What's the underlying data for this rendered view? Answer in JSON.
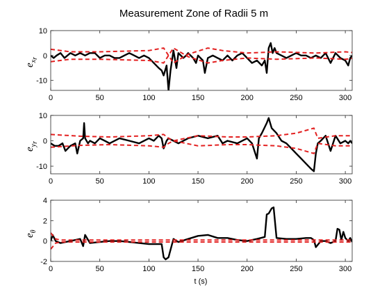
{
  "chart_data": [
    {
      "type": "line",
      "title": "Measurement Zone of Radii 5 m",
      "ylabel": "e",
      "ylabel_sub": "x",
      "ylabel_subsub": "r",
      "xlim": [
        0,
        307
      ],
      "ylim": [
        -14,
        10
      ],
      "xticks": [
        0,
        50,
        100,
        150,
        200,
        250,
        300
      ],
      "yticks": [
        10,
        0,
        -10
      ],
      "series": [
        {
          "color": "#000000",
          "style": "solid",
          "x": [
            0,
            3,
            6,
            10,
            14,
            20,
            25,
            30,
            35,
            40,
            45,
            50,
            55,
            60,
            65,
            70,
            75,
            80,
            85,
            90,
            95,
            100,
            105,
            110,
            113,
            115,
            118,
            120,
            122,
            125,
            128,
            130,
            135,
            138,
            140,
            145,
            148,
            150,
            155,
            157,
            160,
            165,
            170,
            175,
            180,
            185,
            190,
            195,
            200,
            205,
            210,
            215,
            218,
            220,
            222,
            224,
            226,
            228,
            230,
            235,
            240,
            245,
            250,
            255,
            260,
            265,
            270,
            275,
            280,
            285,
            290,
            295,
            300,
            303,
            305,
            307
          ],
          "y": [
            0,
            -1,
            0,
            1,
            -1,
            1,
            0,
            1,
            0,
            1,
            1,
            -1,
            0,
            0,
            -1,
            -1,
            0,
            1,
            0,
            -1,
            0,
            -1,
            -3,
            -5,
            -6,
            -8,
            -4,
            -14,
            -6,
            2,
            -5,
            1,
            -1,
            0,
            1,
            -1,
            -3,
            0,
            -2,
            -7,
            -1,
            0,
            -1,
            -2,
            0,
            -2,
            0,
            1,
            -1,
            -3,
            -2,
            -4,
            -2,
            -7,
            3,
            5,
            1,
            3,
            1,
            0,
            -1,
            0,
            1,
            0,
            0,
            -1,
            0,
            -1,
            1,
            -3,
            1,
            -1,
            -2,
            -4,
            -1,
            0
          ]
        },
        {
          "color": "#e32020",
          "style": "dashed",
          "x": [
            0,
            20,
            50,
            100,
            115,
            120,
            125,
            140,
            160,
            175,
            200,
            230,
            270,
            300,
            307
          ],
          "y": [
            2.5,
            1.5,
            1.5,
            2,
            3,
            0,
            -3,
            0.5,
            3,
            2,
            1,
            1.5,
            1,
            1.5,
            1.2
          ]
        },
        {
          "color": "#e32020",
          "style": "dashed",
          "x": [
            0,
            20,
            50,
            100,
            115,
            120,
            125,
            140,
            160,
            175,
            200,
            230,
            270,
            300,
            307
          ],
          "y": [
            -2.5,
            -1.5,
            -1.5,
            -2,
            -3,
            0,
            3,
            -0.5,
            -3,
            -2,
            -1,
            -1.5,
            -1,
            -1.5,
            -1.2
          ]
        }
      ]
    },
    {
      "type": "line",
      "ylabel": "e",
      "ylabel_sub": "y",
      "ylabel_subsub": "r",
      "xlim": [
        0,
        307
      ],
      "ylim": [
        -13,
        10
      ],
      "xticks": [
        0,
        50,
        100,
        150,
        200,
        250,
        300
      ],
      "yticks": [
        10,
        0,
        -10
      ],
      "series": [
        {
          "color": "#000000",
          "style": "solid",
          "x": [
            0,
            4,
            8,
            12,
            15,
            20,
            25,
            27,
            30,
            33,
            34,
            35,
            38,
            40,
            45,
            50,
            55,
            60,
            70,
            80,
            90,
            100,
            105,
            110,
            113,
            115,
            118,
            120,
            125,
            130,
            140,
            150,
            160,
            170,
            175,
            180,
            190,
            200,
            205,
            210,
            212,
            215,
            220,
            222,
            225,
            230,
            235,
            240,
            245,
            250,
            255,
            260,
            265,
            268,
            270,
            272,
            275,
            280,
            285,
            290,
            295,
            300,
            303,
            305,
            307
          ],
          "y": [
            -1,
            -2,
            -2,
            -1,
            -4,
            -2,
            -1,
            -5,
            0,
            1,
            7,
            1,
            -1,
            0,
            -1,
            1,
            0,
            -1,
            1,
            0,
            -1,
            1,
            0,
            2,
            1,
            -3,
            0,
            1,
            0,
            -1,
            1,
            2,
            1,
            2,
            -1,
            0,
            -1,
            1,
            -1,
            -7,
            1,
            3,
            7,
            9,
            5,
            3,
            0,
            -1,
            -3,
            -5,
            -7,
            -9,
            -11,
            -12,
            -5,
            -1,
            0,
            2,
            -4,
            2,
            -1,
            0,
            -1,
            0,
            -1
          ]
        },
        {
          "color": "#e32020",
          "style": "dashed",
          "x": [
            0,
            30,
            60,
            100,
            115,
            120,
            125,
            150,
            180,
            200,
            230,
            250,
            268,
            272,
            290,
            307
          ],
          "y": [
            2.5,
            1.8,
            1.5,
            2,
            2.5,
            1,
            0,
            2,
            1.5,
            1.5,
            2,
            3,
            5,
            1,
            2,
            2
          ]
        },
        {
          "color": "#e32020",
          "style": "dashed",
          "x": [
            0,
            30,
            60,
            100,
            115,
            120,
            125,
            150,
            180,
            200,
            230,
            250,
            268,
            272,
            290,
            307
          ],
          "y": [
            -2.5,
            -1.8,
            -1.5,
            -2,
            -2.5,
            -1,
            0,
            -2,
            -1.5,
            -1.5,
            -2,
            -3,
            -5,
            -1,
            -2,
            -2
          ]
        }
      ]
    },
    {
      "type": "line",
      "xlabel": "t (s)",
      "ylabel": "e",
      "ylabel_sub": "θ",
      "xlim": [
        0,
        307
      ],
      "ylim": [
        -2,
        4
      ],
      "xticks": [
        0,
        50,
        100,
        150,
        200,
        250,
        300
      ],
      "yticks": [
        4,
        2,
        0,
        -2
      ],
      "series": [
        {
          "color": "#000000",
          "style": "solid",
          "x": [
            0,
            2,
            5,
            10,
            20,
            30,
            33,
            35,
            40,
            50,
            60,
            70,
            80,
            90,
            100,
            110,
            113,
            115,
            117,
            120,
            125,
            130,
            140,
            150,
            160,
            170,
            180,
            190,
            200,
            210,
            218,
            220,
            222,
            225,
            227,
            230,
            240,
            250,
            260,
            265,
            268,
            270,
            275,
            280,
            285,
            290,
            292,
            294,
            296,
            298,
            300,
            303,
            305,
            307
          ],
          "y": [
            0,
            0.6,
            0,
            -0.2,
            0,
            0.2,
            -0.5,
            0.6,
            -0.2,
            -0.1,
            0,
            0,
            -0.1,
            -0.2,
            -0.3,
            -0.3,
            -0.3,
            -1.6,
            -1.8,
            -1.6,
            0.2,
            -0.1,
            0.2,
            0.5,
            0.6,
            0.3,
            0.3,
            0.1,
            0,
            0.2,
            0.4,
            2.6,
            2.7,
            3.2,
            3.3,
            0.3,
            0.2,
            0.2,
            0.3,
            0.3,
            0.1,
            -0.6,
            0,
            0,
            -0.2,
            0,
            1.2,
            1.1,
            0.1,
            0.9,
            0.3,
            0,
            0.3,
            -0.1
          ]
        },
        {
          "color": "#e32020",
          "style": "dashed",
          "x": [
            0,
            5,
            10,
            50,
            100,
            150,
            200,
            250,
            300,
            307
          ],
          "y": [
            0.8,
            0.2,
            0.1,
            0.1,
            0.1,
            0.1,
            0.1,
            0.1,
            0.1,
            0.1
          ]
        },
        {
          "color": "#e32020",
          "style": "dashed",
          "x": [
            0,
            5,
            10,
            50,
            100,
            150,
            200,
            250,
            300,
            307
          ],
          "y": [
            -0.8,
            -0.2,
            -0.1,
            -0.1,
            -0.1,
            -0.1,
            -0.1,
            -0.1,
            -0.1,
            -0.1
          ]
        }
      ]
    }
  ]
}
